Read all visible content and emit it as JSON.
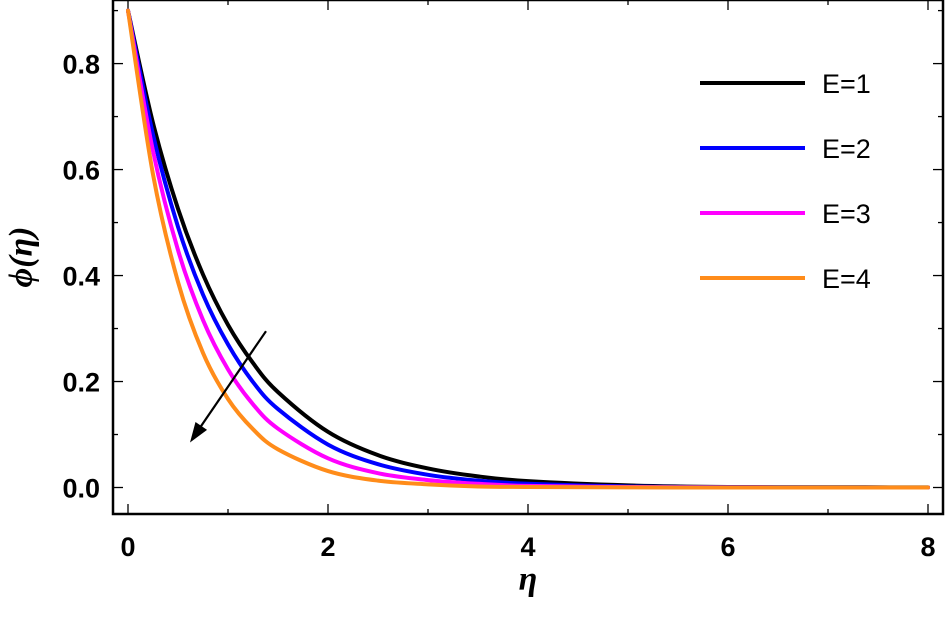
{
  "chart_data": {
    "type": "line",
    "xlabel": "η",
    "ylabel": "ϕ(η)",
    "xlim": [
      -0.15,
      8.15
    ],
    "ylim": [
      -0.05,
      0.92
    ],
    "x_ticks": [
      "0",
      "2",
      "4",
      "6",
      "8"
    ],
    "y_ticks": [
      "0.0",
      "0.2",
      "0.4",
      "0.6",
      "0.8"
    ],
    "grid": false,
    "legend_position": "top-right",
    "annotation": "arrow indicating curves decrease as E increases",
    "series": [
      {
        "name": "E=1",
        "color": "#000000",
        "x": [
          0,
          0.25,
          0.5,
          0.75,
          1,
          1.25,
          1.5,
          2,
          2.5,
          3,
          3.5,
          4,
          5,
          6,
          7,
          8
        ],
        "y": [
          0.9,
          0.688,
          0.526,
          0.402,
          0.307,
          0.235,
          0.18,
          0.105,
          0.061,
          0.036,
          0.021,
          0.012,
          0.004,
          0.001,
          0.0005,
          0.0002
        ]
      },
      {
        "name": "E=2",
        "color": "#0000ff",
        "x": [
          0,
          0.25,
          0.5,
          0.75,
          1,
          1.25,
          1.5,
          2,
          2.5,
          3,
          3.5,
          4,
          5,
          6,
          7,
          8
        ],
        "y": [
          0.9,
          0.666,
          0.492,
          0.364,
          0.27,
          0.199,
          0.148,
          0.081,
          0.044,
          0.024,
          0.013,
          0.007,
          0.002,
          0.0007,
          0.0002,
          0.0001
        ]
      },
      {
        "name": "E=3",
        "color": "#ff00ff",
        "x": [
          0,
          0.25,
          0.5,
          0.75,
          1,
          1.25,
          1.5,
          2,
          2.5,
          3,
          3.5,
          4,
          5,
          6,
          7,
          8
        ],
        "y": [
          0.9,
          0.635,
          0.448,
          0.316,
          0.223,
          0.157,
          0.111,
          0.055,
          0.027,
          0.014,
          0.007,
          0.003,
          0.001,
          0.0002,
          0.0001,
          0
        ]
      },
      {
        "name": "E=4",
        "color": "#ff8c1a",
        "x": [
          0,
          0.25,
          0.5,
          0.75,
          1,
          1.25,
          1.5,
          2,
          2.5,
          3,
          3.5,
          4,
          5,
          6,
          7,
          8
        ],
        "y": [
          0.9,
          0.591,
          0.388,
          0.254,
          0.167,
          0.11,
          0.072,
          0.031,
          0.013,
          0.006,
          0.002,
          0.001,
          0.0002,
          0,
          0,
          0
        ]
      }
    ]
  }
}
